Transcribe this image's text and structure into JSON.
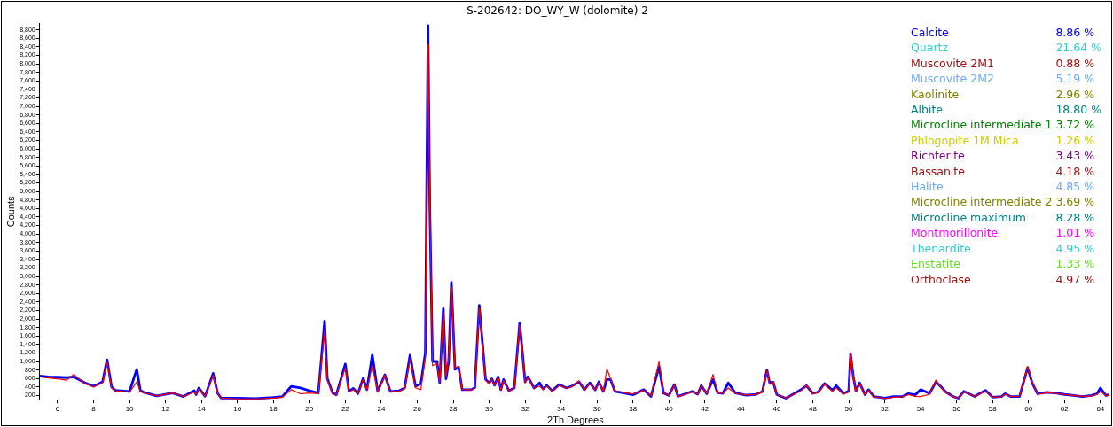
{
  "chart_data": [
    {
      "type": "line",
      "title": "S-202642: DO_WY_W (dolomite) 2",
      "xlabel": "2Th Degrees",
      "ylabel": "Counts",
      "x": [
        5.0,
        5.5,
        6.0,
        6.5,
        6.9,
        7.5,
        8.0,
        8.5,
        8.75,
        9.0,
        9.2,
        10.0,
        10.4,
        10.6,
        10.8,
        11.5,
        12.4,
        13.0,
        13.6,
        13.7,
        13.85,
        14.2,
        14.65,
        14.9,
        15.1,
        16.0,
        17.0,
        18.0,
        18.5,
        19.0,
        19.5,
        20.0,
        20.5,
        20.85,
        21.0,
        21.3,
        21.5,
        22.0,
        22.2,
        22.45,
        22.7,
        23.0,
        23.2,
        23.5,
        23.8,
        24.2,
        24.5,
        25.0,
        25.3,
        25.6,
        25.9,
        26.2,
        26.45,
        26.6,
        26.7,
        26.85,
        27.1,
        27.25,
        27.45,
        27.6,
        27.75,
        27.9,
        28.1,
        28.3,
        28.5,
        29.0,
        29.2,
        29.45,
        29.8,
        30.0,
        30.15,
        30.3,
        30.5,
        30.65,
        30.8,
        31.1,
        31.4,
        31.7,
        32.0,
        32.15,
        32.5,
        32.8,
        33.0,
        33.2,
        33.5,
        33.9,
        34.3,
        34.6,
        35.0,
        35.3,
        35.6,
        35.9,
        36.1,
        36.35,
        36.55,
        36.75,
        37.0,
        37.5,
        38.0,
        38.6,
        39.0,
        39.45,
        39.7,
        40.0,
        40.3,
        40.5,
        41.0,
        41.3,
        41.6,
        41.8,
        42.1,
        42.45,
        42.7,
        43.0,
        43.3,
        43.7,
        44.3,
        44.8,
        45.2,
        45.45,
        45.6,
        45.8,
        46.0,
        46.5,
        47.0,
        47.4,
        47.65,
        48.0,
        48.3,
        48.65,
        48.85,
        49.1,
        49.3,
        49.7,
        50.0,
        50.1,
        50.25,
        50.4,
        50.6,
        50.9,
        51.1,
        51.4,
        52.0,
        52.5,
        53.0,
        53.3,
        53.7,
        54.0,
        54.5,
        54.85,
        55.1,
        55.4,
        55.8,
        56.1,
        56.4,
        57.0,
        57.6,
        58.0,
        58.5,
        58.7,
        59.0,
        59.5,
        59.95,
        60.2,
        60.5,
        61.0,
        61.5,
        62.0,
        62.5,
        63.0,
        63.5,
        63.8,
        64.0,
        64.3,
        64.5
      ],
      "series": [
        {
          "color": "#0000ff",
          "values": [
            656,
            640,
            630,
            620,
            640,
            500,
            416,
            520,
            1040,
            400,
            320,
            296,
            816,
            320,
            272,
            192,
            256,
            176,
            312,
            220,
            376,
            180,
            720,
            250,
            136,
            136,
            128,
            152,
            176,
            416,
            376,
            312,
            256,
            1950,
            600,
            256,
            216,
            940,
            300,
            368,
            240,
            608,
            336,
            1150,
            296,
            688,
            296,
            312,
            376,
            1150,
            416,
            472,
            1200,
            8900,
            4600,
            1000,
            1000,
            496,
            2240,
            592,
            1000,
            2860,
            816,
            870,
            336,
            336,
            380,
            2320,
            576,
            496,
            592,
            440,
            640,
            336,
            576,
            312,
            376,
            1910,
            520,
            640,
            376,
            496,
            352,
            440,
            310,
            456,
            376,
            420,
            520,
            336,
            496,
            330,
            520,
            296,
            576,
            576,
            296,
            256,
            216,
            336,
            176,
            880,
            256,
            200,
            456,
            180,
            250,
            296,
            230,
            432,
            240,
            576,
            270,
            250,
            496,
            256,
            208,
            220,
            290,
            800,
            500,
            512,
            220,
            136,
            250,
            352,
            432,
            250,
            280,
            480,
            416,
            320,
            432,
            250,
            300,
            1176,
            656,
            300,
            496,
            220,
            336,
            176,
            136,
            176,
            176,
            240,
            216,
            336,
            250,
            520,
            416,
            280,
            176,
            136,
            296,
            176,
            320,
            160,
            176,
            240,
            176,
            176,
            856,
            496,
            240,
            272,
            256,
            224,
            200,
            176,
            200,
            240,
            376,
            200,
            220
          ]
        },
        {
          "color": "#ff0000",
          "values": [
            640,
            610,
            590,
            560,
            696,
            480,
            400,
            500,
            976,
            380,
            310,
            280,
            520,
            300,
            260,
            192,
            256,
            176,
            280,
            220,
            350,
            180,
            672,
            240,
            140,
            120,
            120,
            140,
            160,
            336,
            240,
            256,
            240,
            1750,
            550,
            240,
            210,
            850,
            280,
            340,
            240,
            580,
            320,
            900,
            290,
            680,
            290,
            300,
            360,
            1050,
            380,
            336,
            1100,
            8450,
            4700,
            900,
            950,
            500,
            2150,
            650,
            1050,
            2750,
            850,
            880,
            340,
            330,
            370,
            2250,
            560,
            480,
            580,
            430,
            620,
            330,
            560,
            300,
            370,
            1850,
            500,
            620,
            370,
            420,
            340,
            420,
            300,
            440,
            370,
            410,
            540,
            330,
            480,
            330,
            500,
            300,
            832,
            600,
            300,
            270,
            230,
            320,
            190,
            992,
            260,
            200,
            440,
            180,
            240,
            290,
            230,
            420,
            240,
            696,
            270,
            250,
            376,
            250,
            210,
            220,
            280,
            780,
            460,
            520,
            220,
            140,
            240,
            330,
            440,
            240,
            270,
            460,
            380,
            300,
            380,
            230,
            280,
            1200,
            640,
            290,
            480,
            220,
            320,
            170,
            130,
            160,
            170,
            220,
            180,
            176,
            230,
            560,
            400,
            270,
            170,
            140,
            290,
            176,
            300,
            160,
            170,
            230,
            176,
            180,
            880,
            520,
            230,
            260,
            250,
            220,
            200,
            180,
            190,
            220,
            296,
            190,
            200
          ]
        }
      ],
      "xlim": [
        5,
        64.6
      ],
      "xticks": [
        6,
        8,
        10,
        12,
        14,
        16,
        18,
        20,
        22,
        24,
        26,
        28,
        30,
        32,
        34,
        36,
        38,
        40,
        42,
        44,
        46,
        48,
        50,
        52,
        54,
        56,
        58,
        60,
        62,
        64
      ],
      "ylim": [
        100,
        8950
      ],
      "yticks": [
        {
          "value": 200,
          "label": "200"
        },
        {
          "value": 400,
          "label": "400"
        },
        {
          "value": 600,
          "label": "600"
        },
        {
          "value": 800,
          "label": "800"
        },
        {
          "value": 1000,
          "label": "1,000"
        },
        {
          "value": 1200,
          "label": "1,200"
        },
        {
          "value": 1400,
          "label": "1,400"
        },
        {
          "value": 1600,
          "label": "1,600"
        },
        {
          "value": 1800,
          "label": "1,800"
        },
        {
          "value": 2000,
          "label": "2,000"
        },
        {
          "value": 2200,
          "label": "2,200"
        },
        {
          "value": 2400,
          "label": "2,400"
        },
        {
          "value": 2600,
          "label": "2,600"
        },
        {
          "value": 2800,
          "label": "2,800"
        },
        {
          "value": 3000,
          "label": "3,000"
        },
        {
          "value": 3200,
          "label": "3,200"
        },
        {
          "value": 3400,
          "label": "3,400"
        },
        {
          "value": 3600,
          "label": "3,600"
        },
        {
          "value": 3800,
          "label": "3,800"
        },
        {
          "value": 4000,
          "label": "4,000"
        },
        {
          "value": 4200,
          "label": "4,200"
        },
        {
          "value": 4400,
          "label": "4,400"
        },
        {
          "value": 4600,
          "label": "4,600"
        },
        {
          "value": 4800,
          "label": "4,800"
        },
        {
          "value": 5000,
          "label": "5,000"
        },
        {
          "value": 5200,
          "label": "5,200"
        },
        {
          "value": 5400,
          "label": "5,400"
        },
        {
          "value": 5600,
          "label": "5,600"
        },
        {
          "value": 5800,
          "label": "5,800"
        },
        {
          "value": 6000,
          "label": "6,000"
        },
        {
          "value": 6200,
          "label": "6,200"
        },
        {
          "value": 6400,
          "label": "6,400"
        },
        {
          "value": 6600,
          "label": "6,600"
        },
        {
          "value": 6800,
          "label": "6,800"
        },
        {
          "value": 7000,
          "label": "7,000"
        },
        {
          "value": 7200,
          "label": "7,200"
        },
        {
          "value": 7400,
          "label": "7,400"
        },
        {
          "value": 7600,
          "label": "7,600"
        },
        {
          "value": 7800,
          "label": "7,800"
        },
        {
          "value": 8000,
          "label": "8,000"
        },
        {
          "value": 8200,
          "label": "8,200"
        },
        {
          "value": 8400,
          "label": "8,400"
        },
        {
          "value": 8600,
          "label": "8,600"
        },
        {
          "value": 8800,
          "label": "8,800"
        }
      ],
      "grid": false,
      "legend": false,
      "marker": "none",
      "line_style": "solid"
    },
    {
      "type": "other",
      "categories": [
        "Calcite",
        "Quartz",
        "Muscovite 2M1",
        "Muscovite 2M2",
        "Kaolinite",
        "Albite",
        "Microcline intermediate 1",
        "Phlogopite 1M Mica",
        "Richterite",
        "Bassanite",
        "Halite",
        "Microcline intermediate 2",
        "Microcline maximum",
        "Montmorillonite",
        "Thenardite",
        "Enstatite",
        "Orthoclase"
      ],
      "value_labels": [
        "8.86 %",
        "21.64 %",
        "0.88 %",
        "5.19 %",
        "2.96 %",
        "18.80 %",
        "3.72 %",
        "1.26 %",
        "3.43 %",
        "4.18 %",
        "4.85 %",
        "3.69 %",
        "8.28 %",
        "1.01 %",
        "4.95 %",
        "1.33 %",
        "4.97 %"
      ],
      "colors": [
        "#0000ff",
        "#33cccc",
        "#a01010",
        "#6fa8ff",
        "#808000",
        "#008080",
        "#008000",
        "#cccc00",
        "#800080",
        "#a01010",
        "#6fa8ff",
        "#808000",
        "#008080",
        "#ff00ff",
        "#33cccc",
        "#66dd22",
        "#a01010"
      ]
    }
  ]
}
